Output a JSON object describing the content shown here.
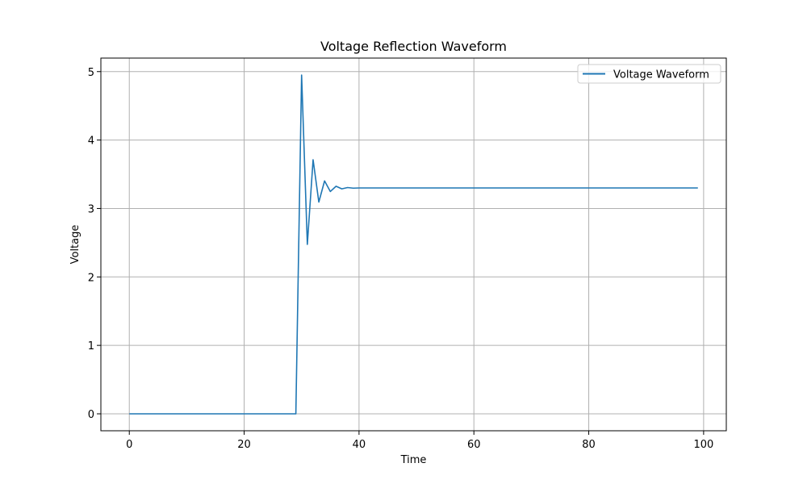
{
  "chart_data": {
    "type": "line",
    "title": "Voltage Reflection Waveform",
    "xlabel": "Time",
    "ylabel": "Voltage",
    "xlim": [
      -4.95,
      103.95
    ],
    "ylim": [
      -0.2475,
      5.1975
    ],
    "xticks": [
      0,
      20,
      40,
      60,
      80,
      100
    ],
    "yticks": [
      0,
      1,
      2,
      3,
      4,
      5
    ],
    "grid": true,
    "legend_position": "upper right",
    "series": [
      {
        "name": "Voltage Waveform",
        "color": "#1f77b4",
        "x": [
          0,
          29,
          30,
          31,
          32,
          33,
          34,
          35,
          36,
          37,
          38,
          39,
          40,
          99
        ],
        "y": [
          0,
          0,
          4.95,
          2.475,
          3.7125,
          3.09375,
          3.403,
          3.248,
          3.325,
          3.287,
          3.306,
          3.297,
          3.3,
          3.3
        ]
      }
    ]
  }
}
